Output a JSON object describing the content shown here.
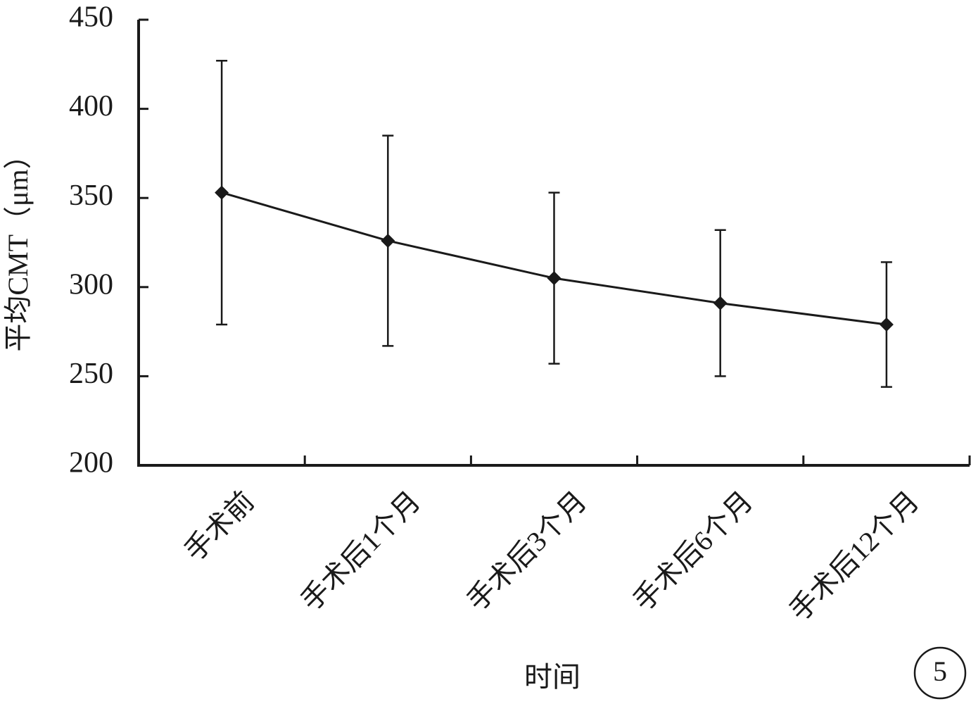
{
  "chart_data": {
    "type": "line",
    "x_label": "时间",
    "y_label": "平均CMT（μm）",
    "annotation": "5",
    "categories": [
      "手术前",
      "手术后1个月",
      "手术后3个月",
      "手术后6个月",
      "手术后12个月"
    ],
    "series": [
      {
        "name": "平均CMT",
        "color": "#1a1a1a",
        "values": [
          353,
          326,
          305,
          291,
          279
        ],
        "errors": [
          74,
          59,
          48,
          41,
          35
        ]
      }
    ],
    "ylim": [
      200,
      450
    ],
    "yticks": [
      200,
      250,
      300,
      350,
      400,
      450
    ]
  }
}
